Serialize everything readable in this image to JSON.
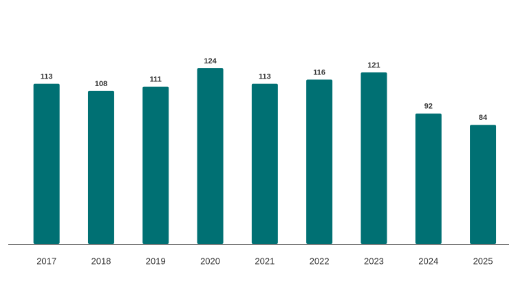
{
  "chart_data": {
    "type": "bar",
    "categories": [
      "2017",
      "2018",
      "2019",
      "2020",
      "2021",
      "2022",
      "2023",
      "2024",
      "2025"
    ],
    "values": [
      113,
      108,
      111,
      124,
      113,
      116,
      121,
      92,
      84
    ],
    "color": "#007073"
  }
}
